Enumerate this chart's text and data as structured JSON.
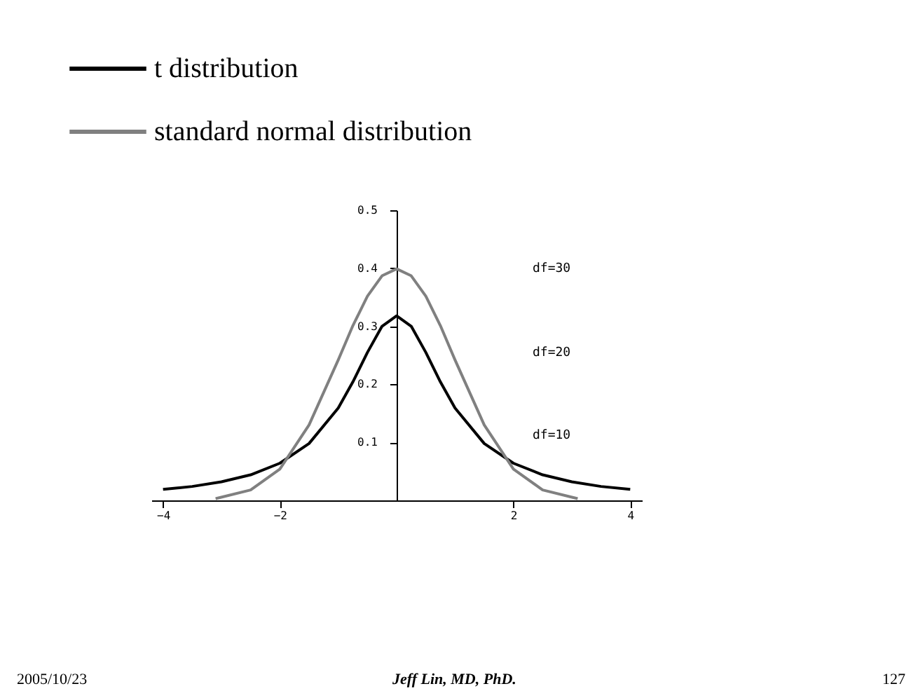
{
  "chart_data": {
    "type": "line",
    "x": [
      -4,
      -3.5,
      -3,
      -2.5,
      -2,
      -1.5,
      -1,
      -0.75,
      -0.5,
      -0.25,
      0,
      0.25,
      0.5,
      0.75,
      1,
      1.5,
      2,
      2.5,
      3,
      3.5,
      4
    ],
    "series": [
      {
        "name": "t distribution",
        "color": "#000000",
        "values": [
          0.019,
          0.024,
          0.032,
          0.044,
          0.064,
          0.098,
          0.159,
          0.204,
          0.255,
          0.3,
          0.318,
          0.3,
          0.255,
          0.204,
          0.159,
          0.098,
          0.064,
          0.044,
          0.032,
          0.024,
          0.019
        ]
      },
      {
        "name": "standard normal distribution",
        "color": "#808080",
        "x": [
          -3.1,
          -2.5,
          -2,
          -1.5,
          -1,
          -0.75,
          -0.5,
          -0.25,
          0,
          0.25,
          0.5,
          0.75,
          1,
          1.5,
          2,
          2.5,
          3.1
        ],
        "values": [
          0.003,
          0.018,
          0.054,
          0.13,
          0.242,
          0.301,
          0.352,
          0.387,
          0.399,
          0.387,
          0.352,
          0.301,
          0.242,
          0.13,
          0.054,
          0.018,
          0.003
        ]
      }
    ],
    "xlim": [
      -4.2,
      4.2
    ],
    "xticks": [
      -4,
      -2,
      2,
      4
    ],
    "ylim": [
      0,
      0.5
    ],
    "yticks": [
      0.1,
      0.2,
      0.3,
      0.4,
      0.5
    ],
    "grid": false,
    "legend": "top",
    "marker": "none",
    "line_style": "solid",
    "annotations": [
      "df=30",
      "df=20",
      "df=10",
      "2005/10/23",
      "Jeff Lin, MD, PhD.",
      "127"
    ]
  }
}
